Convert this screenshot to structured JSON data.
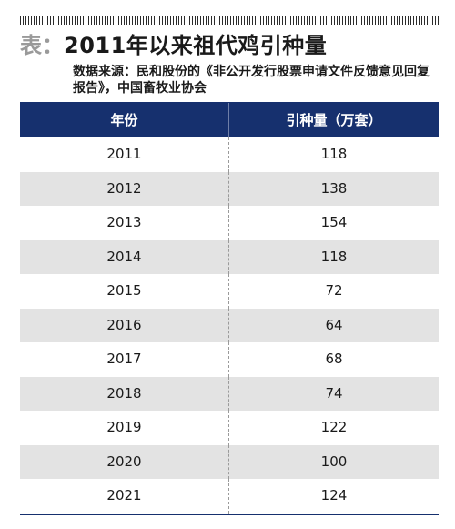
{
  "title": {
    "prefix": "表：",
    "text": "2011年以来祖代鸡引种量"
  },
  "source": "数据来源：民和股份的《非公开发行股票申请文件反馈意见回复报告》，中国畜牧业协会",
  "table": {
    "headers": [
      "年份",
      "引种量（万套）"
    ],
    "rows": [
      {
        "year": "2011",
        "value": "118"
      },
      {
        "year": "2012",
        "value": "138"
      },
      {
        "year": "2013",
        "value": "154"
      },
      {
        "year": "2014",
        "value": "118"
      },
      {
        "year": "2015",
        "value": "72"
      },
      {
        "year": "2016",
        "value": "64"
      },
      {
        "year": "2017",
        "value": "68"
      },
      {
        "year": "2018",
        "value": "74"
      },
      {
        "year": "2019",
        "value": "122"
      },
      {
        "year": "2020",
        "value": "100"
      },
      {
        "year": "2021",
        "value": "124"
      }
    ]
  },
  "colors": {
    "header_bg": "#16306e",
    "stripe": "#e3e3e3",
    "title_prefix": "#9a9a9a"
  }
}
